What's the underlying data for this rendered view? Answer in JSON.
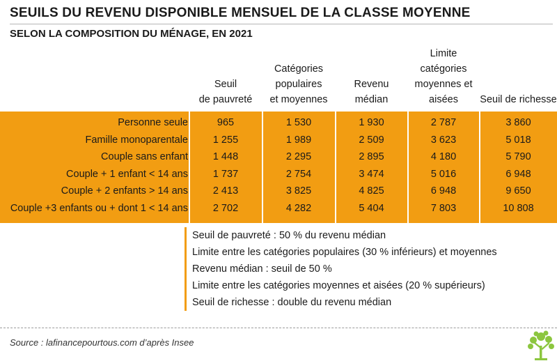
{
  "chart_data": {
    "type": "table",
    "title": "SEUILS DU REVENU DISPONIBLE MENSUEL DE LA CLASSE MOYENNE",
    "subtitle": "SELON LA COMPOSITION DU MÉNAGE, EN 2021",
    "columns": [
      "Seuil\nde pauvreté",
      "Catégories\npopulaires\net moyennes",
      "Revenu\nmédian",
      "Limite catégories\nmoyennes et\naisées",
      "Seuil de richesse"
    ],
    "rows": [
      {
        "label": "Personne seule",
        "values": [
          "965",
          "1 530",
          "1 930",
          "2 787",
          "3 860"
        ]
      },
      {
        "label": "Famille monoparentale",
        "values": [
          "1 255",
          "1 989",
          "2 509",
          "3 623",
          "5 018"
        ]
      },
      {
        "label": "Couple sans enfant",
        "values": [
          "1 448",
          "2 295",
          "2 895",
          "4 180",
          "5 790"
        ]
      },
      {
        "label": "Couple + 1 enfant < 14 ans",
        "values": [
          "1 737",
          "2 754",
          "3 474",
          "5 016",
          "6 948"
        ]
      },
      {
        "label": "Couple + 2 enfants > 14 ans",
        "values": [
          "2 413",
          "3 825",
          "4 825",
          "6 948",
          "9 650"
        ]
      },
      {
        "label": "Couple +3 enfants ou + dont 1 < 14 ans",
        "values": [
          "2 702",
          "4 282",
          "5 404",
          "7 803",
          "10 808"
        ]
      }
    ],
    "notes": [
      "Seuil de pauvreté : 50 % du revenu médian",
      "Limite entre les catégories populaires (30 % inférieurs) et moyennes",
      "Revenu médian : seuil de 50 %",
      "Limite entre les catégories moyennes et aisées (20 % supérieurs)",
      "Seuil de richesse : double du revenu médian"
    ],
    "source": "Source : lafinancepourtous.com d’après Insee"
  },
  "colors": {
    "band": "#f29d12",
    "text": "#1a1a1a"
  },
  "logo_icon": "tree-logo-icon"
}
